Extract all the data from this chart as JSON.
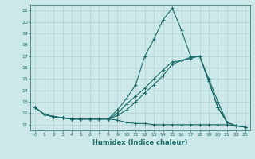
{
  "xlabel": "Humidex (Indice chaleur)",
  "background_color": "#cde8e8",
  "grid_color": "#b0d0d0",
  "line_color": "#1a6b6b",
  "x": [
    0,
    1,
    2,
    3,
    4,
    5,
    6,
    7,
    8,
    9,
    10,
    11,
    12,
    13,
    14,
    15,
    16,
    17,
    18,
    19,
    20,
    21,
    22,
    23
  ],
  "line1": [
    12.5,
    11.9,
    11.7,
    11.6,
    11.5,
    11.5,
    11.5,
    11.5,
    11.5,
    12.3,
    13.3,
    14.5,
    17.0,
    18.5,
    20.2,
    21.2,
    19.3,
    17.0,
    17.0,
    15.0,
    13.0,
    11.2,
    10.9,
    10.8
  ],
  "line2": [
    12.5,
    11.9,
    11.7,
    11.6,
    11.5,
    11.5,
    11.5,
    11.5,
    11.5,
    11.4,
    11.2,
    11.1,
    11.1,
    11.0,
    11.0,
    11.0,
    11.0,
    11.0,
    11.0,
    11.0,
    11.0,
    11.0,
    10.9,
    10.8
  ],
  "line3": [
    12.5,
    11.9,
    11.7,
    11.6,
    11.5,
    11.5,
    11.5,
    11.5,
    11.5,
    12.0,
    12.8,
    13.5,
    14.2,
    15.0,
    15.8,
    16.5,
    16.6,
    16.8,
    17.0,
    14.8,
    12.5,
    11.2,
    10.9,
    10.8
  ],
  "line4": [
    12.5,
    11.9,
    11.7,
    11.6,
    11.5,
    11.5,
    11.5,
    11.5,
    11.5,
    11.8,
    12.3,
    13.0,
    13.8,
    14.5,
    15.3,
    16.3,
    16.6,
    16.9,
    17.0,
    14.8,
    12.5,
    11.2,
    10.9,
    10.8
  ],
  "ylim": [
    10.5,
    21.5
  ],
  "yticks": [
    11,
    12,
    13,
    14,
    15,
    16,
    17,
    18,
    19,
    20,
    21
  ],
  "xticks": [
    0,
    1,
    2,
    3,
    4,
    5,
    6,
    7,
    8,
    9,
    10,
    11,
    12,
    13,
    14,
    15,
    16,
    17,
    18,
    19,
    20,
    21,
    22,
    23
  ]
}
